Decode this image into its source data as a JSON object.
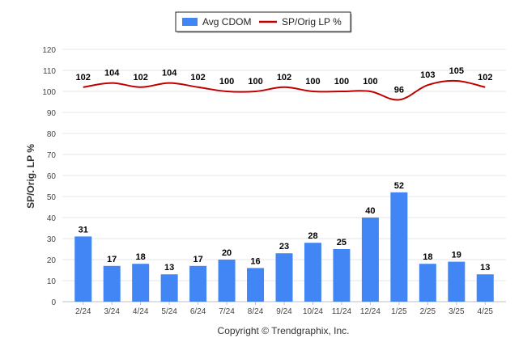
{
  "chart_data": {
    "type": "bar",
    "categories": [
      "2/24",
      "3/24",
      "4/24",
      "5/24",
      "6/24",
      "7/24",
      "8/24",
      "9/24",
      "10/24",
      "11/24",
      "12/24",
      "1/25",
      "2/25",
      "3/25",
      "4/25"
    ],
    "series": [
      {
        "name": "Avg CDOM",
        "type": "bar",
        "color": "#4285f4",
        "values": [
          31,
          17,
          18,
          13,
          17,
          20,
          16,
          23,
          28,
          25,
          40,
          52,
          18,
          19,
          13
        ]
      },
      {
        "name": "SP/Orig LP %",
        "type": "line",
        "color": "#c00000",
        "values": [
          102,
          104,
          102,
          104,
          102,
          100,
          100,
          102,
          100,
          100,
          100,
          96,
          103,
          105,
          102
        ]
      }
    ],
    "ylabel": "SP/Orig. LP %",
    "yticks": [
      0,
      10,
      20,
      30,
      40,
      50,
      60,
      70,
      80,
      90,
      100,
      110,
      120
    ],
    "ylim": [
      0,
      120
    ],
    "grid": true,
    "legend": "top-center"
  },
  "footer": {
    "copyright": "Copyright © Trendgraphix, Inc."
  }
}
